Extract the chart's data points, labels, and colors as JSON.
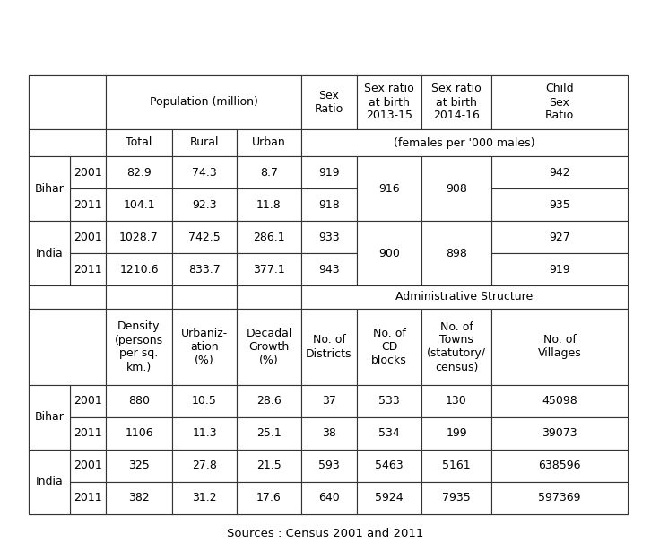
{
  "source_text": "Sources : Census 2001 and 2011",
  "background_color": "#ffffff",
  "border_color": "#333333",
  "text_color": "#000000",
  "top_headers": {
    "pop_million": "Population (million)",
    "sex_ratio": "Sex\nRatio",
    "sex_ratio_birth_1": "Sex ratio\nat birth\n2013-15",
    "sex_ratio_birth_2": "Sex ratio\nat birth\n2014-16",
    "child_sex_ratio": "Child\nSex\nRatio"
  },
  "sub_headers_top": {
    "total": "Total",
    "rural": "Rural",
    "urban": "Urban",
    "females_note": "(females per '000 males)"
  },
  "bihar_srb1": "916",
  "bihar_srb2": "908",
  "india_srb1": "900",
  "india_srb2": "898",
  "bottom_headers": {
    "density": "Density\n(persons\nper sq.\nkm.)",
    "urbanization": "Urbaniz-\nation\n(%)",
    "decadal_growth": "Decadal\nGrowth\n(%)",
    "admin_structure": "Administrative Structure",
    "no_districts": "No. of\nDistricts",
    "no_cd_blocks": "No. of\nCD\nblocks",
    "no_towns": "No. of\nTowns\n(statutory/\ncensus)",
    "no_villages": "No. of\nVillages"
  }
}
